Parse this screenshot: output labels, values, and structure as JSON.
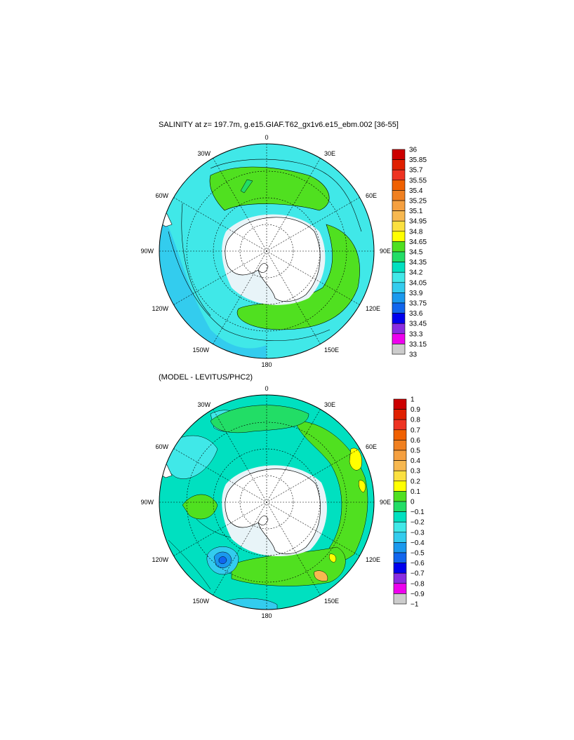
{
  "panel_top": {
    "title": "SALINITY at z= 197.7m, g.e15.GIAF.T62_gx1v6.e15_ebm.002 [36-55]",
    "lon_labels": {
      "l0": "0",
      "l30e": "30E",
      "l60e": "60E",
      "l90e": "90E",
      "l120e": "120E",
      "l150e": "150E",
      "l180": "180",
      "l150w": "150W",
      "l120w": "120W",
      "l90w": "90W",
      "l60w": "60W",
      "l30w": "30W"
    },
    "colorbar": {
      "labels": [
        "36",
        "35.85",
        "35.7",
        "35.55",
        "35.4",
        "35.25",
        "35.1",
        "34.95",
        "34.8",
        "34.65",
        "34.5",
        "34.35",
        "34.2",
        "34.05",
        "33.9",
        "33.75",
        "33.6",
        "33.45",
        "33.3",
        "33.15",
        "33"
      ],
      "colors": [
        "#cc0000",
        "#e02000",
        "#ee3322",
        "#f06000",
        "#f08020",
        "#f5a040",
        "#f7b850",
        "#fbe040",
        "#ffff00",
        "#50e020",
        "#22dd66",
        "#00e0c0",
        "#40e8e8",
        "#33ccee",
        "#1a99ee",
        "#1166ee",
        "#0000ee",
        "#8a2be2",
        "#ee00ee",
        "#cccccc",
        "#777777"
      ]
    }
  },
  "panel_bottom": {
    "title": "(MODEL - LEVITUS/PHC2)",
    "lon_labels": {
      "l0": "0",
      "l30e": "30E",
      "l60e": "60E",
      "l90e": "90E",
      "l120e": "120E",
      "l150e": "150E",
      "l180": "180",
      "l150w": "150W",
      "l120w": "120W",
      "l90w": "90W",
      "l60w": "60W",
      "l30w": "30W"
    },
    "colorbar": {
      "labels": [
        "1",
        "0.9",
        "0.8",
        "0.7",
        "0.6",
        "0.5",
        "0.4",
        "0.3",
        "0.2",
        "0.1",
        "0",
        "−0.1",
        "−0.2",
        "−0.3",
        "−0.4",
        "−0.5",
        "−0.6",
        "−0.7",
        "−0.8",
        "−0.9",
        "−1"
      ],
      "colors": [
        "#cc0000",
        "#e02000",
        "#ee3322",
        "#f06000",
        "#f08020",
        "#f5a040",
        "#f7b850",
        "#fbe040",
        "#ffff00",
        "#50e020",
        "#22dd66",
        "#00e0c0",
        "#40e8e8",
        "#33ccee",
        "#1a99ee",
        "#1166ee",
        "#0000ee",
        "#8a2be2",
        "#ee00ee",
        "#cccccc",
        "#777777"
      ]
    }
  }
}
